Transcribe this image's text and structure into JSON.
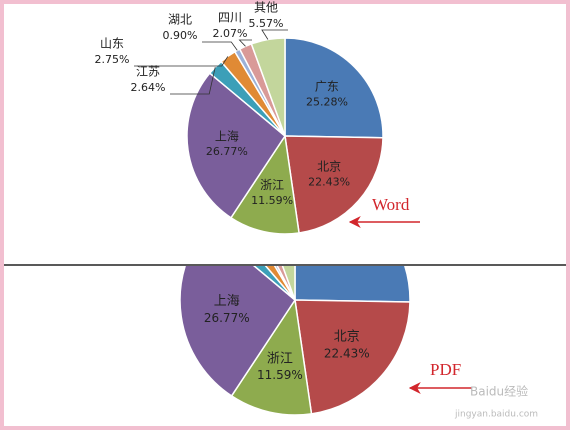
{
  "chart_data": {
    "type": "pie",
    "categories": [
      "广东",
      "北京",
      "浙江",
      "上海",
      "江苏",
      "山东",
      "湖北",
      "四川",
      "其他"
    ],
    "values": [
      25.28,
      22.43,
      11.59,
      26.77,
      2.64,
      2.75,
      0.9,
      2.07,
      5.57
    ],
    "value_labels": [
      "25.28%",
      "22.43%",
      "11.59%",
      "26.77%",
      "2.64%",
      "2.75%",
      "0.90%",
      "2.07%",
      "5.57%"
    ],
    "colors": [
      "#4a7ab5",
      "#b54a4a",
      "#8eab4e",
      "#7a5e9b",
      "#3c9fb8",
      "#e08a35",
      "#9cb1d8",
      "#d99a98",
      "#c3d69c"
    ],
    "annotations": [
      "Word",
      "PDF"
    ]
  },
  "watermark": [
    "Baidu经验",
    "jingyan.baidu.com"
  ]
}
